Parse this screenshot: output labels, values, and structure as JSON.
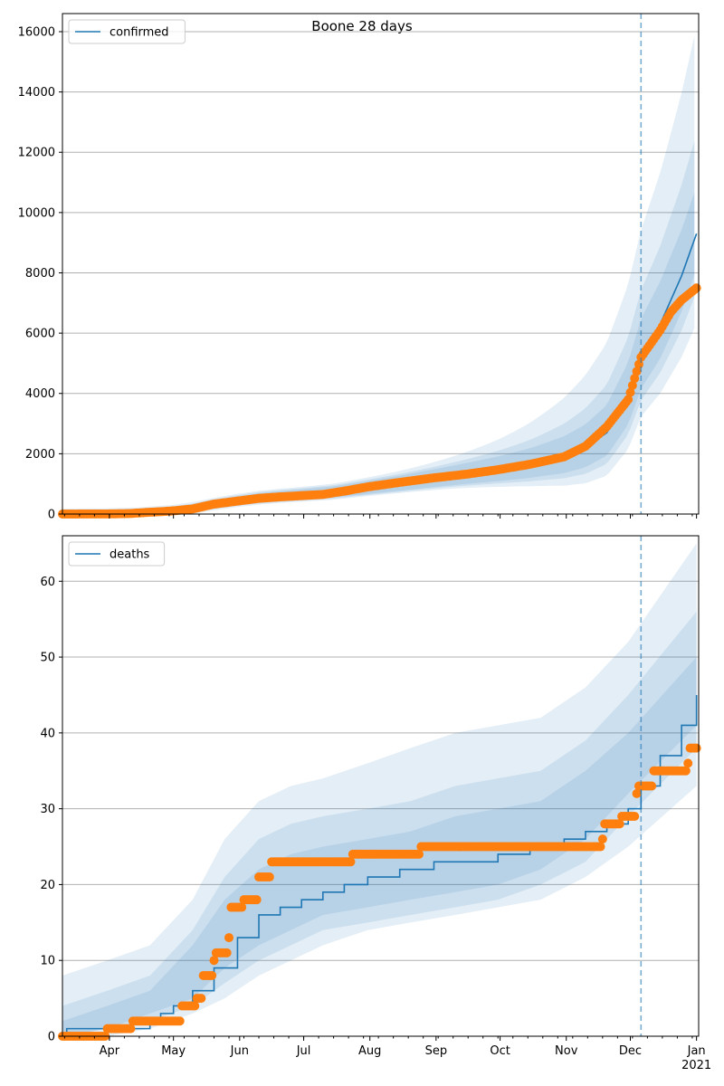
{
  "chart_data": [
    {
      "type": "line",
      "title": "Boone 28 days",
      "xlabel": "",
      "ylabel": "",
      "ylim": [
        0,
        16600
      ],
      "yticks": [
        0,
        2000,
        4000,
        6000,
        8000,
        10000,
        12000,
        14000,
        16000
      ],
      "x_start": "2020-03-10",
      "x_end": "2021-01-01",
      "xlim": [
        "2020-03-10",
        "2021-01-02"
      ],
      "xticks": [
        "Apr",
        "May",
        "Jun",
        "Jul",
        "Aug",
        "Sep",
        "Oct",
        "Nov",
        "Dec",
        "Jan\n2021"
      ],
      "grid": "horizontal",
      "legend": {
        "position": "top-left",
        "entries": [
          "confirmed"
        ]
      },
      "forecast_start": "2020-12-06",
      "series": [
        {
          "name": "confirmed",
          "role": "model",
          "points": [
            [
              "2020-03-10",
              0
            ],
            [
              "2020-03-31",
              10
            ],
            [
              "2020-04-15",
              40
            ],
            [
              "2020-04-30",
              110
            ],
            [
              "2020-05-10",
              200
            ],
            [
              "2020-05-20",
              330
            ],
            [
              "2020-05-31",
              450
            ],
            [
              "2020-06-10",
              540
            ],
            [
              "2020-06-20",
              600
            ],
            [
              "2020-06-30",
              650
            ],
            [
              "2020-07-15",
              730
            ],
            [
              "2020-07-31",
              880
            ],
            [
              "2020-08-15",
              1020
            ],
            [
              "2020-08-31",
              1180
            ],
            [
              "2020-09-15",
              1330
            ],
            [
              "2020-09-30",
              1480
            ],
            [
              "2020-10-15",
              1660
            ],
            [
              "2020-10-31",
              1920
            ],
            [
              "2020-11-10",
              2200
            ],
            [
              "2020-11-20",
              2700
            ],
            [
              "2020-11-30",
              3900
            ],
            [
              "2020-12-06",
              5200
            ],
            [
              "2020-12-15",
              6300
            ],
            [
              "2020-12-25",
              7900
            ],
            [
              "2021-01-01",
              9300
            ]
          ]
        },
        {
          "name": "",
          "role": "observed",
          "points": [
            [
              "2020-03-10",
              0
            ],
            [
              "2020-03-31",
              5
            ],
            [
              "2020-04-10",
              15
            ],
            [
              "2020-04-20",
              60
            ],
            [
              "2020-04-30",
              100
            ],
            [
              "2020-05-10",
              170
            ],
            [
              "2020-05-20",
              330
            ],
            [
              "2020-05-31",
              430
            ],
            [
              "2020-06-10",
              520
            ],
            [
              "2020-06-20",
              570
            ],
            [
              "2020-06-30",
              610
            ],
            [
              "2020-07-10",
              650
            ],
            [
              "2020-07-20",
              760
            ],
            [
              "2020-07-31",
              900
            ],
            [
              "2020-08-15",
              1050
            ],
            [
              "2020-08-31",
              1200
            ],
            [
              "2020-09-15",
              1320
            ],
            [
              "2020-09-30",
              1470
            ],
            [
              "2020-10-15",
              1650
            ],
            [
              "2020-10-31",
              1900
            ],
            [
              "2020-11-10",
              2250
            ],
            [
              "2020-11-20",
              2900
            ],
            [
              "2020-11-30",
              3800
            ],
            [
              "2020-12-06",
              5200
            ],
            [
              "2020-12-10",
              5600
            ],
            [
              "2020-12-15",
              6100
            ],
            [
              "2020-12-20",
              6700
            ],
            [
              "2020-12-25",
              7100
            ],
            [
              "2021-01-01",
              7500
            ]
          ]
        }
      ],
      "bands": [
        {
          "lower_at_end": 6500,
          "upper_at_end": 16000
        },
        {
          "lower_at_end": 7500,
          "upper_at_end": 12500
        },
        {
          "lower_at_end": 8200,
          "upper_at_end": 10800
        }
      ],
      "colors": {
        "model": "#1f77b4",
        "observed": "#ff7f0e",
        "band": "#1f77b4",
        "grid": "#b0b0b0"
      }
    },
    {
      "type": "line",
      "title": "",
      "xlabel": "",
      "ylabel": "",
      "ylim": [
        0,
        66
      ],
      "yticks": [
        0,
        10,
        20,
        30,
        40,
        50,
        60
      ],
      "x_start": "2020-03-10",
      "x_end": "2021-01-01",
      "xlim": [
        "2020-03-10",
        "2021-01-02"
      ],
      "xticks": [
        "Apr",
        "May",
        "Jun",
        "Jul",
        "Aug",
        "Sep",
        "Oct",
        "Nov",
        "Dec",
        "Jan\n2021"
      ],
      "grid": "horizontal",
      "legend": {
        "position": "top-left",
        "entries": [
          "deaths"
        ]
      },
      "forecast_start": "2020-12-06",
      "series": [
        {
          "name": "deaths",
          "role": "model",
          "step": true,
          "points": [
            [
              "2020-03-10",
              0
            ],
            [
              "2020-03-12",
              1
            ],
            [
              "2020-04-20",
              2
            ],
            [
              "2020-04-25",
              3
            ],
            [
              "2020-05-01",
              4
            ],
            [
              "2020-05-10",
              6
            ],
            [
              "2020-05-20",
              9
            ],
            [
              "2020-05-31",
              13
            ],
            [
              "2020-06-10",
              16
            ],
            [
              "2020-06-20",
              17
            ],
            [
              "2020-06-30",
              18
            ],
            [
              "2020-07-10",
              19
            ],
            [
              "2020-07-20",
              20
            ],
            [
              "2020-07-31",
              21
            ],
            [
              "2020-08-15",
              22
            ],
            [
              "2020-08-31",
              23
            ],
            [
              "2020-09-15",
              23
            ],
            [
              "2020-09-30",
              24
            ],
            [
              "2020-10-15",
              25
            ],
            [
              "2020-10-31",
              26
            ],
            [
              "2020-11-10",
              27
            ],
            [
              "2020-11-20",
              28
            ],
            [
              "2020-11-30",
              30
            ],
            [
              "2020-12-06",
              33
            ],
            [
              "2020-12-15",
              37
            ],
            [
              "2020-12-25",
              41
            ],
            [
              "2021-01-01",
              45
            ]
          ]
        },
        {
          "name": "",
          "role": "observed",
          "step": true,
          "points": [
            [
              "2020-03-10",
              0
            ],
            [
              "2020-03-31",
              1
            ],
            [
              "2020-04-12",
              2
            ],
            [
              "2020-05-05",
              4
            ],
            [
              "2020-05-12",
              5
            ],
            [
              "2020-05-15",
              8
            ],
            [
              "2020-05-20",
              10
            ],
            [
              "2020-05-21",
              11
            ],
            [
              "2020-05-27",
              13
            ],
            [
              "2020-05-28",
              17
            ],
            [
              "2020-06-03",
              18
            ],
            [
              "2020-06-10",
              21
            ],
            [
              "2020-06-16",
              23
            ],
            [
              "2020-07-01",
              23
            ],
            [
              "2020-07-24",
              24
            ],
            [
              "2020-08-25",
              25
            ],
            [
              "2020-10-15",
              25
            ],
            [
              "2020-11-18",
              26
            ],
            [
              "2020-11-19",
              28
            ],
            [
              "2020-11-27",
              29
            ],
            [
              "2020-12-04",
              32
            ],
            [
              "2020-12-05",
              33
            ],
            [
              "2020-12-12",
              35
            ],
            [
              "2020-12-28",
              36
            ],
            [
              "2020-12-29",
              38
            ],
            [
              "2021-01-01",
              38
            ]
          ]
        }
      ],
      "bands": [
        {
          "points_lower": [
            0,
            0,
            1,
            3,
            5,
            8,
            10,
            12,
            14,
            15,
            16,
            17,
            18,
            21,
            25,
            33
          ],
          "points_upper": [
            8,
            10,
            12,
            18,
            26,
            31,
            33,
            34,
            36,
            38,
            40,
            41,
            42,
            46,
            52,
            65
          ]
        },
        {
          "points_lower": [
            0,
            1,
            2,
            4,
            7,
            10,
            12,
            14,
            15,
            16,
            17,
            18,
            20,
            23,
            29,
            38
          ],
          "points_upper": [
            4,
            6,
            8,
            14,
            21,
            26,
            28,
            29,
            30,
            31,
            33,
            34,
            35,
            39,
            45,
            56
          ]
        },
        {
          "points_lower": [
            0,
            1,
            3,
            5,
            9,
            12,
            14,
            16,
            17,
            18,
            19,
            20,
            22,
            26,
            32,
            41
          ],
          "points_upper": [
            2,
            4,
            6,
            12,
            18,
            22,
            24,
            25,
            26,
            27,
            29,
            30,
            31,
            35,
            40,
            50
          ]
        }
      ],
      "band_x": [
        "2020-03-10",
        "2020-03-31",
        "2020-04-20",
        "2020-05-10",
        "2020-05-25",
        "2020-06-10",
        "2020-06-25",
        "2020-07-10",
        "2020-07-31",
        "2020-08-20",
        "2020-09-10",
        "2020-09-30",
        "2020-10-20",
        "2020-11-10",
        "2020-11-30",
        "2021-01-01"
      ],
      "colors": {
        "model": "#1f77b4",
        "observed": "#ff7f0e",
        "band": "#1f77b4",
        "grid": "#b0b0b0"
      }
    }
  ]
}
